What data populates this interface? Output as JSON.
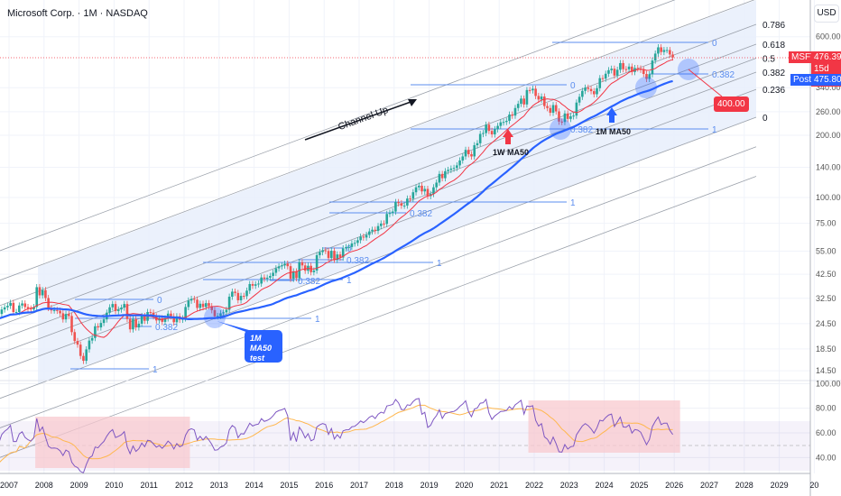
{
  "header": {
    "title": "Microsoft Corp. · 1M · NASDAQ",
    "currency": "USD"
  },
  "price_tags": {
    "symbol": "MSFT",
    "last": "476.39",
    "countdown": "15d 0h",
    "post_label": "Post",
    "post": "475.80",
    "target": "400.00"
  },
  "annotations": {
    "channel": "Channel Up",
    "weekly_ma": "1W MA50",
    "monthly_ma": "1M MA50",
    "ma_test": "1M MA50 test"
  },
  "fib_channel_levels": [
    "0.786",
    "0.618",
    "0.5",
    "0.382",
    "0.236",
    "0"
  ],
  "fib_retracements": [
    {
      "label_top": "0",
      "label_mid": "0.382",
      "label_bottom": "1"
    }
  ],
  "colors": {
    "up": "#26a69a",
    "down": "#ef5350",
    "ma_fast": "#f23645",
    "ma_slow": "#2962ff",
    "rsi": "#7e57c2",
    "rsi_ma": "#ffb74d",
    "channel_fill": "#e8eefc",
    "highlight": "#f8c9cf"
  },
  "chart_data": [
    {
      "type": "candlestick",
      "title": "Microsoft Corp. · 1M · NASDAQ",
      "y_scale": "log",
      "y_ticks": [
        "600.00",
        "340.00",
        "260.00",
        "200.00",
        "140.00",
        "100.00",
        "75.00",
        "55.00",
        "42.50",
        "32.50",
        "24.50",
        "18.50",
        "14.50"
      ],
      "x_ticks": [
        "2007",
        "2008",
        "2009",
        "2010",
        "2011",
        "2012",
        "2013",
        "2014",
        "2015",
        "2016",
        "2017",
        "2018",
        "2019",
        "2020",
        "2021",
        "2022",
        "2023",
        "2024",
        "2025",
        "2026",
        "2027",
        "2028",
        "2029",
        "20"
      ],
      "start_year": 2006,
      "monthly_close": {
        "2006": [
          27,
          26.8,
          27.2,
          27.2,
          25,
          23.3,
          24,
          25.7,
          27.3,
          28.7,
          29.4,
          29.9
        ],
        "2007": [
          30.9,
          27.9,
          27.9,
          30,
          30.7,
          29.5,
          29,
          28.7,
          29.5,
          36.8,
          33.6,
          35.6
        ],
        "2008": [
          32.6,
          29.2,
          28.4,
          28.5,
          28.3,
          27.5,
          25.7,
          27.3,
          26.7,
          22.3,
          20.2,
          19.4
        ],
        "2009": [
          17.1,
          16.2,
          18.4,
          20.3,
          20.9,
          23.8,
          23.5,
          24.7,
          25.7,
          27.7,
          29.4,
          30.5
        ],
        "2010": [
          28.2,
          28.7,
          29.3,
          30.5,
          25.8,
          23,
          25.8,
          23.5,
          24.5,
          26.7,
          25.3,
          27.9
        ],
        "2011": [
          27.7,
          26.6,
          25.4,
          26,
          25,
          26,
          27.4,
          26.6,
          24.9,
          26.6,
          25.6,
          26
        ],
        "2012": [
          29.5,
          31.7,
          32.3,
          32,
          29.2,
          30.6,
          29.5,
          30.8,
          29.8,
          28.5,
          26.6,
          26.7
        ],
        "2013": [
          27.5,
          27.8,
          28.6,
          33.1,
          35,
          34.5,
          31.8,
          33.4,
          33.3,
          35.4,
          38.1,
          37.4
        ],
        "2014": [
          38,
          38.3,
          41,
          40.4,
          40.9,
          41.7,
          43.2,
          45.4,
          46.4,
          46.9,
          47.8,
          46.5
        ],
        "2015": [
          40.4,
          43.9,
          40.7,
          48.6,
          46.9,
          44.2,
          46.7,
          43.5,
          44.3,
          52.6,
          54.4,
          55.5
        ],
        "2016": [
          55.1,
          50.9,
          55.2,
          49.9,
          53,
          51.2,
          56.7,
          57.5,
          57.6,
          59.9,
          60.3,
          62.1
        ],
        "2017": [
          64.6,
          64,
          65.9,
          68.5,
          69.8,
          68.9,
          72.7,
          74.8,
          74.5,
          83.2,
          84.2,
          85.5
        ],
        "2018": [
          95,
          93.8,
          91.3,
          91.4,
          98.8,
          98.6,
          106,
          112,
          114,
          107,
          110,
          101.6
        ],
        "2019": [
          104,
          112,
          118,
          130,
          124,
          134,
          136,
          138,
          139,
          143,
          151,
          158
        ],
        "2020": [
          170,
          162,
          158,
          179,
          183,
          203,
          205,
          225,
          210,
          202,
          214,
          222
        ],
        "2021": [
          231,
          232,
          235,
          252,
          249,
          271,
          284,
          301,
          282,
          331,
          330,
          336
        ],
        "2022": [
          310,
          298,
          308,
          277,
          271,
          257,
          280,
          261,
          233,
          232,
          255,
          240
        ],
        "2023": [
          247,
          249,
          288,
          307,
          328,
          340,
          335,
          327,
          316,
          338,
          378,
          376
        ],
        "2024": [
          397,
          413,
          420,
          389,
          415,
          447,
          418,
          417,
          430,
          405,
          423,
          421
        ],
        "2025": [
          415,
          396,
          375,
          395,
          460,
          497,
          533,
          506,
          517,
          517,
          492,
          476.39
        ]
      }
    },
    {
      "type": "line",
      "title": "RSI",
      "y_ticks": [
        "100.00",
        "80.00",
        "60.00",
        "40.00"
      ],
      "highlight_ranges": [
        [
          "2007-10",
          "2012-03"
        ],
        [
          "2021-11",
          "2026-03"
        ]
      ]
    }
  ]
}
